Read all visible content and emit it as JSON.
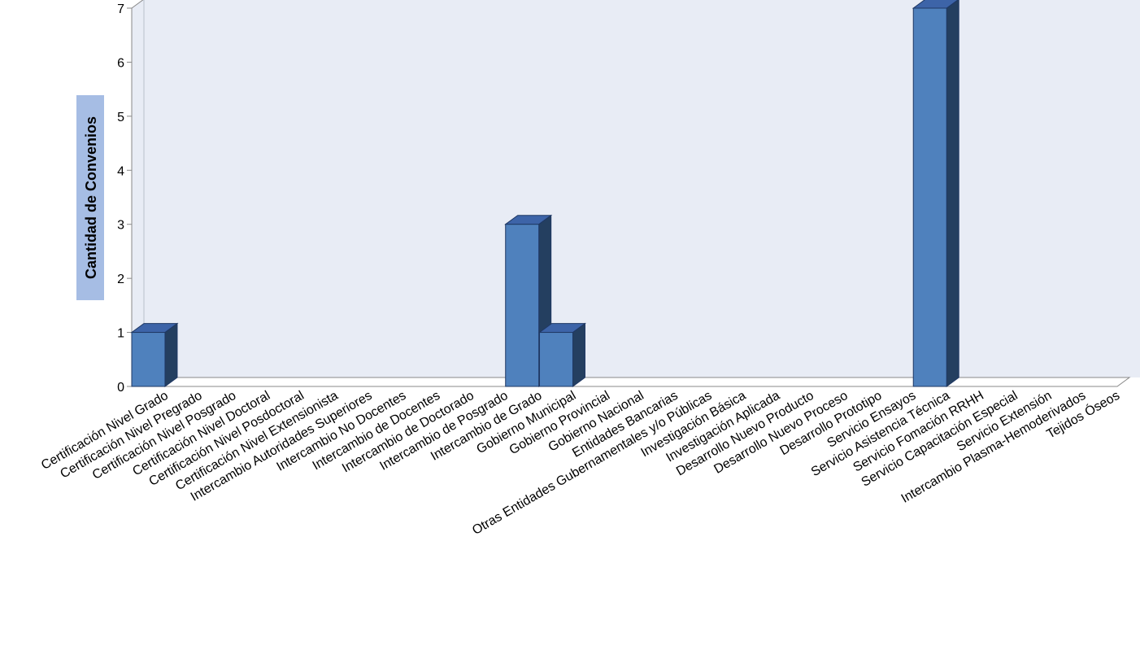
{
  "chart_data": {
    "type": "bar",
    "title": "",
    "xlabel": "",
    "ylabel": "Cantidad de Convenios",
    "ylim": [
      0,
      7
    ],
    "yticks": [
      0,
      1,
      2,
      3,
      4,
      5,
      6,
      7
    ],
    "grid": false,
    "legend": "none",
    "three_d": true,
    "categories": [
      "Certificación Nivel Grado",
      "Certificación Nivel Pregrado",
      "Certificación Nivel Posgrado",
      "Certificación Nivel Doctoral",
      "Certificación Nivel Posdoctoral",
      "Certificación Nivel Extensionista",
      "Intercambio Autoridades Superiores",
      "Intercambio No Docentes",
      "Intercambio de Docentes",
      "Intercambio de Doctorado",
      "Intercambio de Posgrado",
      "Intercambio de Grado",
      "Gobierno Municipal",
      "Gobierno Provincial",
      "Gobierno Nacional",
      "Entidades Bancarias",
      "Otras Entidades Gubernamentales y/o Públicas",
      "Investigación Básica",
      "Investigación Aplicada",
      "Desarrollo Nuevo Producto",
      "Desarrollo Nuevo Proceso",
      "Desarrollo Prototipo",
      "Servicio Ensayos",
      "Servicio Asistencia Técnica",
      "Servicio Fomación RRHH",
      "Servicio Capacitación Especial",
      "Servicio Extensión",
      "Intercambio Plasma-Hemoderivados",
      "Tejidos Óseos"
    ],
    "values": [
      1,
      0,
      0,
      0,
      0,
      0,
      0,
      0,
      0,
      0,
      0,
      3,
      1,
      0,
      0,
      0,
      0,
      0,
      0,
      0,
      0,
      0,
      0,
      7,
      0,
      0,
      0,
      0,
      0
    ],
    "colors": {
      "bar_front": "#4f81bd",
      "bar_top": "#3d64a8",
      "bar_side": "#243f60",
      "bar_edge": "#1f3864",
      "wall": "#e8ecf5",
      "floor": "#ffffff",
      "ylabel_bg": "#a6bde4",
      "axis": "#888888"
    }
  }
}
